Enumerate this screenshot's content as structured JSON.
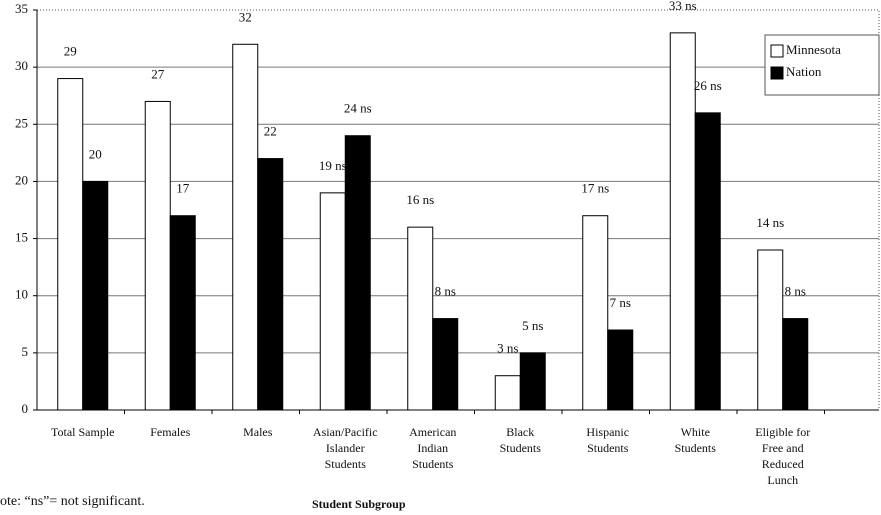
{
  "chart_data": {
    "type": "bar",
    "x_label": "Student Subgroup",
    "note": "ote: “ns”= not significant.",
    "categories": [
      "Total Sample",
      "Females",
      "Males",
      "Asian/Pacific\nIslander\nStudents",
      "American\nIndian\nStudents",
      "Black\nStudents",
      "Hispanic\nStudents",
      "White\nStudents",
      "Eligible for\nFree and\nReduced\nLunch"
    ],
    "series": [
      {
        "name": "Minnesota",
        "color": "#ffffff",
        "values": [
          29,
          27,
          32,
          19,
          16,
          3,
          17,
          33,
          14
        ],
        "value_labels": [
          "29",
          "27",
          "32",
          "19 ns",
          "16 ns",
          "3 ns",
          "17 ns",
          "33 ns",
          "14 ns"
        ]
      },
      {
        "name": "Nation",
        "color": "#000000",
        "values": [
          20,
          17,
          22,
          24,
          8,
          5,
          7,
          26,
          8
        ],
        "value_labels": [
          "20",
          "17",
          "22",
          "24 ns",
          "8 ns",
          "5 ns",
          "7 ns",
          "26 ns",
          "8 ns"
        ]
      }
    ],
    "ylim": [
      0,
      35
    ],
    "yticks": [
      0,
      5,
      10,
      15,
      20,
      25,
      30,
      35
    ],
    "grid": true,
    "legend": "top-right"
  }
}
